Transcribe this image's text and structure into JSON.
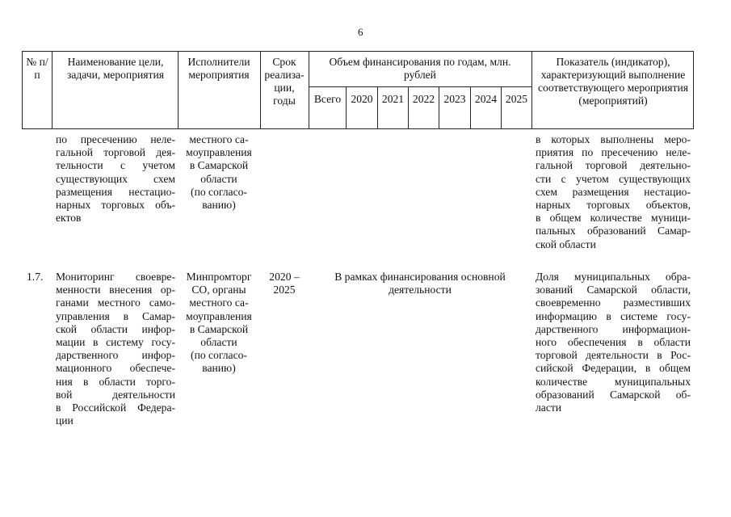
{
  "page_number": "6",
  "header": {
    "num": "№ п/п",
    "name": "Наименование цели, задачи, мероприятия",
    "executors": "Исполнители мероприятия",
    "term": "Срок реализа-ции, годы",
    "funding": "Объем финансирования по годам, млн. рублей",
    "funding_cols": [
      "Всего",
      "2020",
      "2021",
      "2022",
      "2023",
      "2024",
      "2025"
    ],
    "indicator": "Показатель (индикатор), характеризующий выполнение соответствующего мероприятия (мероприятий)"
  },
  "rows": [
    {
      "num": "",
      "name_lines": [
        "по пресечению неле-",
        "гальной торговой дея-",
        "тельности с учетом",
        "существующих схем",
        "размещения нестацио-",
        "нарных торговых объ-",
        "ектов"
      ],
      "executor_lines": [
        "местного са-",
        "моуправления",
        "в Самарской",
        "области",
        "(по согласо-",
        "ванию)"
      ],
      "term_lines": [],
      "funding": "",
      "indicator_lines": [
        "в которых выполнены меро-",
        "приятия по пресечению неле-",
        "гальной торговой деятельно-",
        "сти с учетом существующих",
        "схем размещения нестацио-",
        "нарных торговых объектов,",
        "в общем количестве муници-",
        "пальных образований Самар-",
        "ской области"
      ]
    },
    {
      "num": "1.7.",
      "name_lines": [
        "Мониторинг своевре-",
        "менности внесения ор-",
        "ганами местного само-",
        "управления в Самар-",
        "ской области инфор-",
        "мации в систему госу-",
        "дарственного инфор-",
        "мационного обеспече-",
        "ния в области торго-",
        "вой деятельности",
        "в Российской Федера-",
        "ции"
      ],
      "executor_lines": [
        "Минпромторг",
        "СО, органы",
        "местного са-",
        "моуправления",
        "в Самарской",
        "области",
        "(по согласо-",
        "ванию)"
      ],
      "term_lines": [
        "2020 –",
        "2025"
      ],
      "funding": "В рамках финансирования основной деятельности",
      "indicator_lines": [
        "Доля муниципальных обра-",
        "зований Самарской области,",
        "своевременно разместивших",
        "информацию в системе госу-",
        "дарственного информацион-",
        "ного обеспечения в области",
        "торговой деятельности в Рос-",
        "сийской Федерации, в общем",
        "количестве муниципальных",
        "образований Самарской об-",
        "ласти"
      ]
    }
  ]
}
